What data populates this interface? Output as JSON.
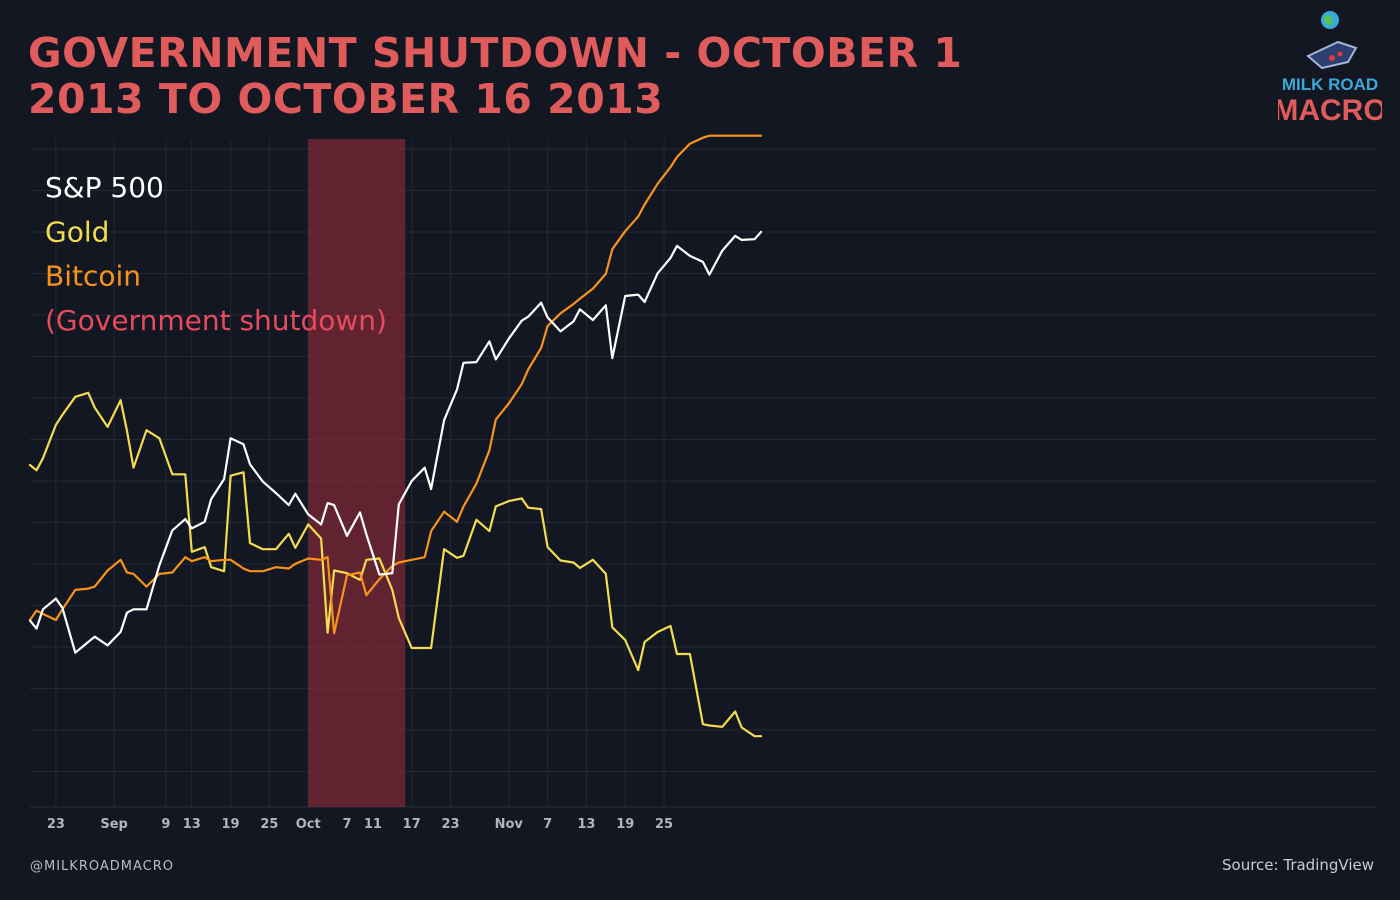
{
  "title": "GOVERNMENT SHUTDOWN - OCTOBER 1 2013 TO OCTOBER 16 2013",
  "handle": "@MILKROADMACRO",
  "source": "Source: TradingView",
  "logo": {
    "line1": "MILK ROAD",
    "line2": "MACRO"
  },
  "colors": {
    "background": "#131722",
    "title": "#e05c5c",
    "grid": "#232836",
    "shutdown_band": "#5e222f"
  },
  "chart_data": {
    "type": "line",
    "title": "GOVERNMENT SHUTDOWN - OCTOBER 1 2013 TO OCTOBER 16 2013",
    "xlabel": "",
    "ylabel": "",
    "x_ticks": [
      "23",
      "Sep",
      "9",
      "13",
      "19",
      "25",
      "Oct",
      "7",
      "11",
      "17",
      "23",
      "Nov",
      "7",
      "13",
      "19",
      "25"
    ],
    "grid": true,
    "legend_position": "top-left",
    "shutdown_period": {
      "start": "2013-10-01",
      "end": "2013-10-16",
      "label": "(Government shutdown)",
      "color": "#8a2a38"
    },
    "series": [
      {
        "name": "S&P 500",
        "color": "#ffffff",
        "values": [
          [
            "2013-08-19",
            27.9
          ],
          [
            "2013-08-20",
            26.7
          ],
          [
            "2013-08-21",
            29.6
          ],
          [
            "2013-08-23",
            31.2
          ],
          [
            "2013-08-24",
            29.8
          ],
          [
            "2013-08-26",
            23.1
          ],
          [
            "2013-08-28",
            24.7
          ],
          [
            "2013-08-29",
            25.5
          ],
          [
            "2013-08-31",
            24.2
          ],
          [
            "2013-09-02",
            26.2
          ],
          [
            "2013-09-03",
            29.1
          ],
          [
            "2013-09-04",
            29.6
          ],
          [
            "2013-09-06",
            29.6
          ],
          [
            "2013-09-08",
            36.2
          ],
          [
            "2013-09-10",
            41.4
          ],
          [
            "2013-09-12",
            43.1
          ],
          [
            "2013-09-13",
            41.7
          ],
          [
            "2013-09-15",
            42.7
          ],
          [
            "2013-09-16",
            46.1
          ],
          [
            "2013-09-18",
            49.1
          ],
          [
            "2013-09-19",
            55.2
          ],
          [
            "2013-09-21",
            54.3
          ],
          [
            "2013-09-22",
            51.3
          ],
          [
            "2013-09-24",
            48.7
          ],
          [
            "2013-09-26",
            47.0
          ],
          [
            "2013-09-28",
            45.2
          ],
          [
            "2013-09-29",
            46.9
          ],
          [
            "2013-10-01",
            43.8
          ],
          [
            "2013-10-03",
            42.3
          ],
          [
            "2013-10-04",
            45.5
          ],
          [
            "2013-10-05",
            45.2
          ],
          [
            "2013-10-07",
            40.6
          ],
          [
            "2013-10-09",
            44.1
          ],
          [
            "2013-10-10",
            40.8
          ],
          [
            "2013-10-12",
            34.8
          ],
          [
            "2013-10-14",
            35.0
          ],
          [
            "2013-10-15",
            45.3
          ],
          [
            "2013-10-17",
            48.8
          ],
          [
            "2013-10-19",
            50.8
          ],
          [
            "2013-10-20",
            47.6
          ],
          [
            "2013-10-22",
            57.9
          ],
          [
            "2013-10-24",
            62.5
          ],
          [
            "2013-10-25",
            66.5
          ],
          [
            "2013-10-27",
            66.6
          ],
          [
            "2013-10-29",
            69.7
          ],
          [
            "2013-10-30",
            67.0
          ],
          [
            "2013-11-01",
            70.1
          ],
          [
            "2013-11-03",
            72.8
          ],
          [
            "2013-11-04",
            73.4
          ],
          [
            "2013-11-06",
            75.5
          ],
          [
            "2013-11-07",
            73.3
          ],
          [
            "2013-11-09",
            71.2
          ],
          [
            "2013-11-11",
            72.7
          ],
          [
            "2013-11-12",
            74.5
          ],
          [
            "2013-11-14",
            72.9
          ],
          [
            "2013-11-16",
            75.1
          ],
          [
            "2013-11-17",
            67.2
          ],
          [
            "2013-11-19",
            76.5
          ],
          [
            "2013-11-21",
            76.7
          ],
          [
            "2013-11-22",
            75.6
          ],
          [
            "2013-11-24",
            79.9
          ],
          [
            "2013-11-26",
            82.2
          ],
          [
            "2013-11-27",
            84.0
          ],
          [
            "2013-11-29",
            82.5
          ],
          [
            "2013-12-01",
            81.6
          ],
          [
            "2013-12-02",
            79.7
          ],
          [
            "2013-12-04",
            83.3
          ],
          [
            "2013-12-06",
            85.5
          ],
          [
            "2013-12-07",
            84.9
          ],
          [
            "2013-12-09",
            85.0
          ],
          [
            "2013-12-10",
            86.1
          ]
        ]
      },
      {
        "name": "Gold",
        "color": "#f2dc50",
        "values": [
          [
            "2013-08-19",
            51.2
          ],
          [
            "2013-08-20",
            50.4
          ],
          [
            "2013-08-21",
            52.2
          ],
          [
            "2013-08-23",
            57.2
          ],
          [
            "2013-08-24",
            58.7
          ],
          [
            "2013-08-26",
            61.4
          ],
          [
            "2013-08-28",
            62.0
          ],
          [
            "2013-08-29",
            59.8
          ],
          [
            "2013-08-31",
            56.9
          ],
          [
            "2013-09-02",
            60.9
          ],
          [
            "2013-09-03",
            56.3
          ],
          [
            "2013-09-04",
            50.8
          ],
          [
            "2013-09-06",
            56.4
          ],
          [
            "2013-09-08",
            55.2
          ],
          [
            "2013-09-10",
            49.8
          ],
          [
            "2013-09-12",
            49.8
          ],
          [
            "2013-09-13",
            38.2
          ],
          [
            "2013-09-15",
            38.9
          ],
          [
            "2013-09-16",
            35.9
          ],
          [
            "2013-09-18",
            35.3
          ],
          [
            "2013-09-19",
            49.6
          ],
          [
            "2013-09-21",
            50.1
          ],
          [
            "2013-09-22",
            39.5
          ],
          [
            "2013-09-24",
            38.6
          ],
          [
            "2013-09-26",
            38.6
          ],
          [
            "2013-09-28",
            40.9
          ],
          [
            "2013-09-29",
            38.8
          ],
          [
            "2013-10-01",
            42.3
          ],
          [
            "2013-10-03",
            40.2
          ],
          [
            "2013-10-04",
            26.1
          ],
          [
            "2013-10-05",
            35.4
          ],
          [
            "2013-10-07",
            35.0
          ],
          [
            "2013-10-09",
            34.0
          ],
          [
            "2013-10-10",
            37.0
          ],
          [
            "2013-10-12",
            37.2
          ],
          [
            "2013-10-14",
            32.5
          ],
          [
            "2013-10-15",
            28.3
          ],
          [
            "2013-10-17",
            23.8
          ],
          [
            "2013-10-19",
            23.8
          ],
          [
            "2013-10-20",
            23.8
          ],
          [
            "2013-10-22",
            38.6
          ],
          [
            "2013-10-24",
            37.3
          ],
          [
            "2013-10-25",
            37.6
          ],
          [
            "2013-10-27",
            43.0
          ],
          [
            "2013-10-29",
            41.3
          ],
          [
            "2013-10-30",
            45.0
          ],
          [
            "2013-11-01",
            45.8
          ],
          [
            "2013-11-03",
            46.2
          ],
          [
            "2013-11-04",
            44.8
          ],
          [
            "2013-11-06",
            44.6
          ],
          [
            "2013-11-07",
            38.9
          ],
          [
            "2013-11-09",
            36.9
          ],
          [
            "2013-11-11",
            36.6
          ],
          [
            "2013-11-12",
            35.8
          ],
          [
            "2013-11-14",
            37.0
          ],
          [
            "2013-11-16",
            34.9
          ],
          [
            "2013-11-17",
            26.9
          ],
          [
            "2013-11-19",
            25.0
          ],
          [
            "2013-11-21",
            20.5
          ],
          [
            "2013-11-22",
            24.7
          ],
          [
            "2013-11-24",
            26.2
          ],
          [
            "2013-11-26",
            27.1
          ],
          [
            "2013-11-27",
            22.9
          ],
          [
            "2013-11-29",
            22.9
          ],
          [
            "2013-12-01",
            12.4
          ],
          [
            "2013-12-02",
            12.2
          ],
          [
            "2013-12-04",
            12.0
          ],
          [
            "2013-12-06",
            14.3
          ],
          [
            "2013-12-07",
            11.9
          ],
          [
            "2013-12-09",
            10.6
          ],
          [
            "2013-12-10",
            10.6
          ]
        ]
      },
      {
        "name": "Bitcoin",
        "color": "#f7931a",
        "values": [
          [
            "2013-08-19",
            28.0
          ],
          [
            "2013-08-20",
            29.4
          ],
          [
            "2013-08-21",
            28.9
          ],
          [
            "2013-08-23",
            28.0
          ],
          [
            "2013-08-24",
            29.6
          ],
          [
            "2013-08-26",
            32.5
          ],
          [
            "2013-08-28",
            32.7
          ],
          [
            "2013-08-29",
            33.0
          ],
          [
            "2013-08-31",
            35.4
          ],
          [
            "2013-09-02",
            37.0
          ],
          [
            "2013-09-03",
            35.1
          ],
          [
            "2013-09-04",
            34.9
          ],
          [
            "2013-09-06",
            33.0
          ],
          [
            "2013-09-08",
            34.9
          ],
          [
            "2013-09-10",
            35.1
          ],
          [
            "2013-09-12",
            37.4
          ],
          [
            "2013-09-13",
            36.8
          ],
          [
            "2013-09-15",
            37.4
          ],
          [
            "2013-09-16",
            36.8
          ],
          [
            "2013-09-18",
            37.0
          ],
          [
            "2013-09-19",
            37.0
          ],
          [
            "2013-09-21",
            35.7
          ],
          [
            "2013-09-22",
            35.3
          ],
          [
            "2013-09-24",
            35.3
          ],
          [
            "2013-09-26",
            35.9
          ],
          [
            "2013-09-28",
            35.7
          ],
          [
            "2013-09-29",
            36.4
          ],
          [
            "2013-10-01",
            37.2
          ],
          [
            "2013-10-03",
            37.0
          ],
          [
            "2013-10-04",
            37.4
          ],
          [
            "2013-10-05",
            26.0
          ],
          [
            "2013-10-07",
            34.7
          ],
          [
            "2013-10-09",
            35.1
          ],
          [
            "2013-10-10",
            31.7
          ],
          [
            "2013-10-12",
            34.1
          ],
          [
            "2013-10-14",
            36.1
          ],
          [
            "2013-10-15",
            36.6
          ],
          [
            "2013-10-17",
            37.0
          ],
          [
            "2013-10-19",
            37.4
          ],
          [
            "2013-10-20",
            41.3
          ],
          [
            "2013-10-22",
            44.2
          ],
          [
            "2013-10-24",
            42.7
          ],
          [
            "2013-10-25",
            45.0
          ],
          [
            "2013-10-27",
            48.4
          ],
          [
            "2013-10-29",
            53.4
          ],
          [
            "2013-10-30",
            58.0
          ],
          [
            "2013-11-01",
            60.4
          ],
          [
            "2013-11-03",
            63.3
          ],
          [
            "2013-11-04",
            65.5
          ],
          [
            "2013-11-06",
            68.7
          ],
          [
            "2013-11-07",
            72.0
          ],
          [
            "2013-11-09",
            73.9
          ],
          [
            "2013-11-11",
            75.3
          ],
          [
            "2013-11-12",
            76.1
          ],
          [
            "2013-11-14",
            77.6
          ],
          [
            "2013-11-16",
            79.8
          ],
          [
            "2013-11-17",
            83.5
          ],
          [
            "2013-11-19",
            86.2
          ],
          [
            "2013-11-21",
            88.4
          ],
          [
            "2013-11-22",
            90.2
          ],
          [
            "2013-11-24",
            93.3
          ],
          [
            "2013-11-26",
            95.8
          ],
          [
            "2013-11-27",
            97.3
          ],
          [
            "2013-11-29",
            99.3
          ],
          [
            "2013-12-01",
            100.2
          ],
          [
            "2013-12-02",
            100.5
          ],
          [
            "2013-12-04",
            100.5
          ],
          [
            "2013-12-06",
            100.5
          ],
          [
            "2013-12-07",
            100.5
          ],
          [
            "2013-12-09",
            100.5
          ],
          [
            "2013-12-10",
            100.5
          ]
        ]
      }
    ]
  }
}
